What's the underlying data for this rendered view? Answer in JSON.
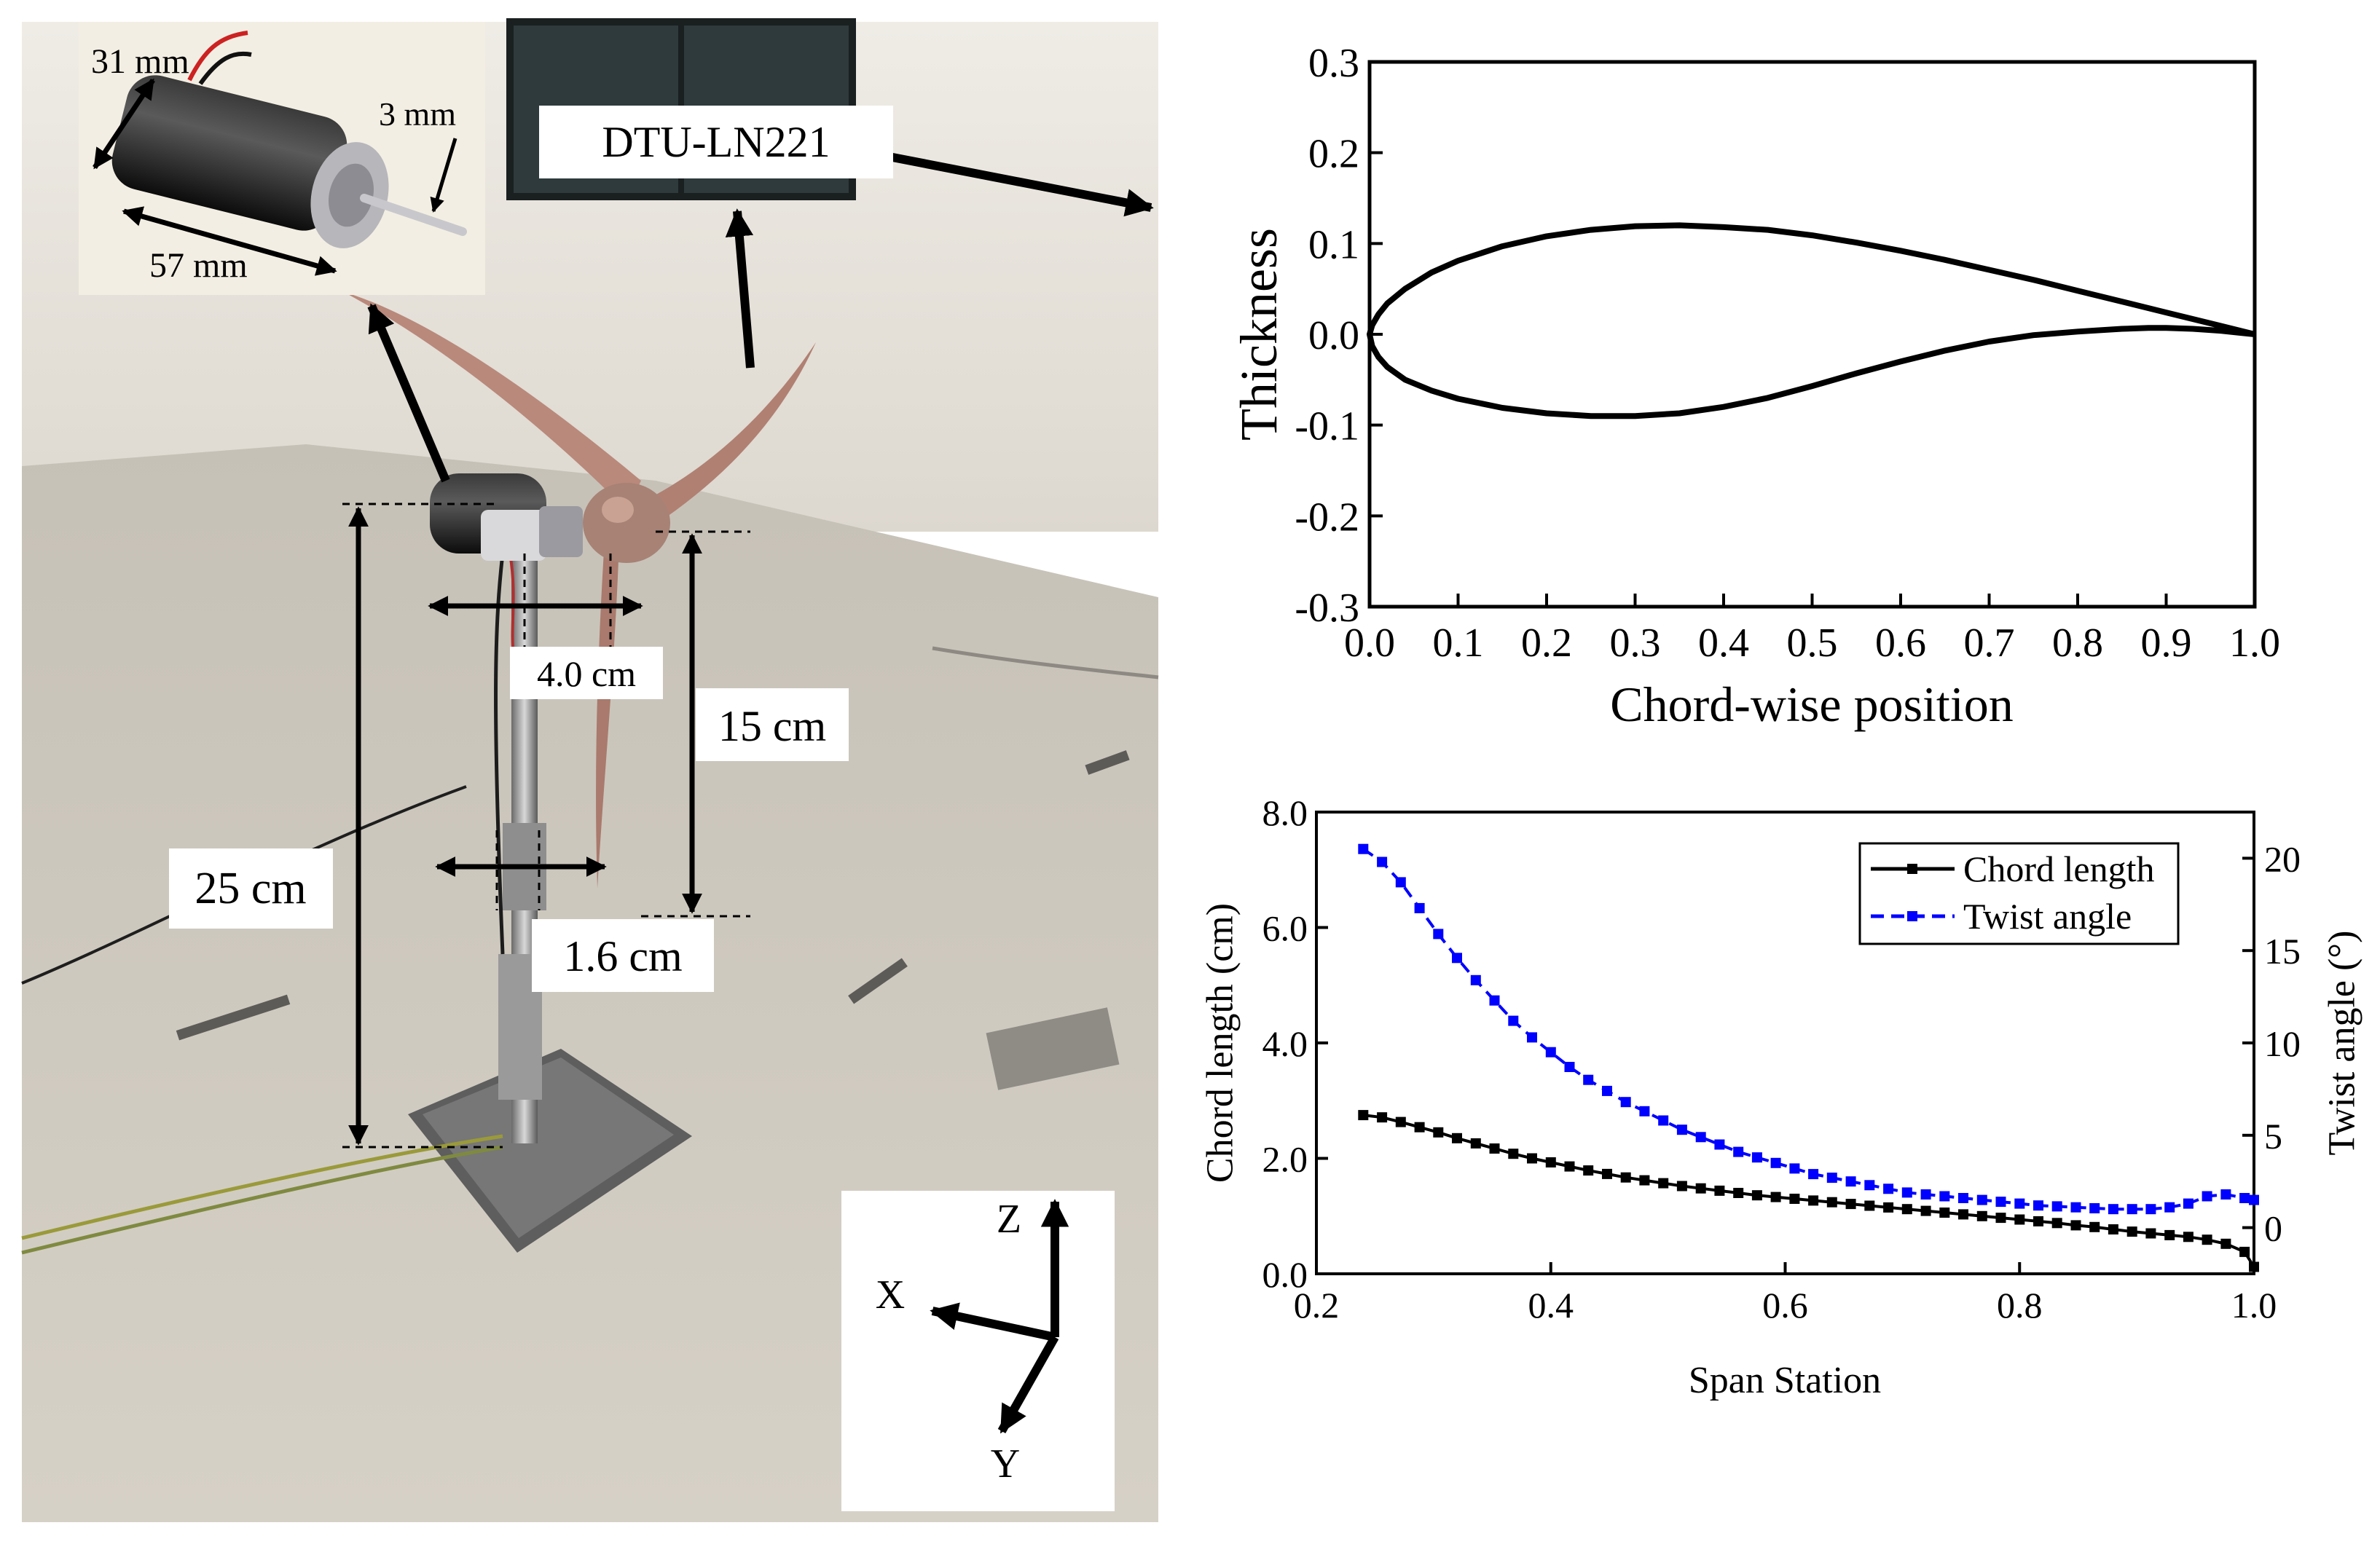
{
  "photo": {
    "motor_inset": {
      "dim_diameter": "31 mm",
      "dim_shaft": "3 mm",
      "dim_length": "57 mm"
    },
    "airfoil_label": "DTU-LN221",
    "dim_hub_width": "4.0 cm",
    "dim_blade_offset": "15 cm",
    "dim_tower_height": "25 cm",
    "dim_tower_diameter": "1.6 cm",
    "axes": {
      "z": "Z",
      "x": "X",
      "y": "Y"
    },
    "colors": {
      "blade": "#b9897b",
      "floor": "#c9c3b7",
      "wall": "#e9e6df"
    }
  },
  "chart_data": [
    {
      "type": "line",
      "title": "",
      "xlabel": "Chord-wise position",
      "ylabel": "Thickness",
      "xlim": [
        0.0,
        1.0
      ],
      "ylim": [
        -0.3,
        0.3
      ],
      "xticks": [
        "0.0",
        "0.1",
        "0.2",
        "0.3",
        "0.4",
        "0.5",
        "0.6",
        "0.7",
        "0.8",
        "0.9",
        "1.0"
      ],
      "yticks": [
        "0.3",
        "0.2",
        "0.1",
        "0.0",
        "-0.1",
        "-0.2",
        "-0.3"
      ],
      "series": [
        {
          "color": "#000000",
          "points": [
            [
              1.0,
              0.0
            ],
            [
              0.95,
              0.012
            ],
            [
              0.9,
              0.024
            ],
            [
              0.85,
              0.036
            ],
            [
              0.8,
              0.048
            ],
            [
              0.75,
              0.06
            ],
            [
              0.7,
              0.071
            ],
            [
              0.65,
              0.082
            ],
            [
              0.6,
              0.092
            ],
            [
              0.55,
              0.101
            ],
            [
              0.5,
              0.109
            ],
            [
              0.45,
              0.115
            ],
            [
              0.4,
              0.118
            ],
            [
              0.35,
              0.12
            ],
            [
              0.3,
              0.119
            ],
            [
              0.25,
              0.115
            ],
            [
              0.2,
              0.108
            ],
            [
              0.15,
              0.097
            ],
            [
              0.1,
              0.081
            ],
            [
              0.07,
              0.068
            ],
            [
              0.04,
              0.05
            ],
            [
              0.02,
              0.034
            ],
            [
              0.01,
              0.022
            ],
            [
              0.003,
              0.01
            ],
            [
              0.0,
              0.0
            ],
            [
              0.003,
              -0.013
            ],
            [
              0.01,
              -0.025
            ],
            [
              0.02,
              -0.036
            ],
            [
              0.04,
              -0.05
            ],
            [
              0.07,
              -0.062
            ],
            [
              0.1,
              -0.071
            ],
            [
              0.15,
              -0.081
            ],
            [
              0.2,
              -0.087
            ],
            [
              0.25,
              -0.09
            ],
            [
              0.3,
              -0.09
            ],
            [
              0.35,
              -0.087
            ],
            [
              0.4,
              -0.08
            ],
            [
              0.45,
              -0.07
            ],
            [
              0.5,
              -0.057
            ],
            [
              0.55,
              -0.043
            ],
            [
              0.6,
              -0.03
            ],
            [
              0.65,
              -0.018
            ],
            [
              0.7,
              -0.008
            ],
            [
              0.75,
              -0.001
            ],
            [
              0.8,
              0.003
            ],
            [
              0.85,
              0.006
            ],
            [
              0.88,
              0.007
            ],
            [
              0.9,
              0.007
            ],
            [
              0.93,
              0.006
            ],
            [
              0.96,
              0.004
            ],
            [
              0.98,
              0.002
            ],
            [
              1.0,
              0.0
            ]
          ]
        }
      ]
    },
    {
      "type": "line",
      "title": "",
      "xlabel": "Span Station",
      "ylabel": "Chord length (cm)",
      "ylabel_right": "Twist angle (°)",
      "xlim": [
        0.2,
        1.0
      ],
      "ylim": [
        0.0,
        8.0
      ],
      "ylim_right": [
        -2.5,
        22.5
      ],
      "xticks": [
        "0.2",
        "0.4",
        "0.6",
        "0.8",
        "1.0"
      ],
      "yticks": [
        "8.0",
        "6.0",
        "4.0",
        "2.0",
        "0.0"
      ],
      "yticks_right": [
        "20",
        "15",
        "10",
        "5",
        "0"
      ],
      "legend": "top-right",
      "series": [
        {
          "name": "Chord length",
          "color": "#000000",
          "axis": "left",
          "style": "solid",
          "marker": "square",
          "x": [
            0.24,
            0.256,
            0.272,
            0.288,
            0.304,
            0.32,
            0.336,
            0.352,
            0.368,
            0.384,
            0.4,
            0.416,
            0.432,
            0.448,
            0.464,
            0.48,
            0.496,
            0.512,
            0.528,
            0.544,
            0.56,
            0.576,
            0.592,
            0.608,
            0.624,
            0.64,
            0.656,
            0.672,
            0.688,
            0.704,
            0.72,
            0.736,
            0.752,
            0.768,
            0.784,
            0.8,
            0.816,
            0.832,
            0.848,
            0.864,
            0.88,
            0.896,
            0.912,
            0.928,
            0.944,
            0.96,
            0.976,
            0.992,
            1.0
          ],
          "y": [
            2.75,
            2.71,
            2.63,
            2.54,
            2.45,
            2.35,
            2.26,
            2.17,
            2.08,
            2.0,
            1.93,
            1.86,
            1.79,
            1.73,
            1.67,
            1.62,
            1.57,
            1.52,
            1.48,
            1.44,
            1.4,
            1.36,
            1.33,
            1.3,
            1.27,
            1.24,
            1.21,
            1.18,
            1.15,
            1.12,
            1.09,
            1.06,
            1.03,
            1.0,
            0.97,
            0.94,
            0.91,
            0.88,
            0.84,
            0.81,
            0.77,
            0.73,
            0.7,
            0.67,
            0.64,
            0.59,
            0.52,
            0.38,
            0.12
          ]
        },
        {
          "name": "Twist angle",
          "color": "#0000ff",
          "axis": "right",
          "style": "dashed",
          "marker": "square",
          "x": [
            0.24,
            0.256,
            0.272,
            0.288,
            0.304,
            0.32,
            0.336,
            0.352,
            0.368,
            0.384,
            0.4,
            0.416,
            0.432,
            0.448,
            0.464,
            0.48,
            0.496,
            0.512,
            0.528,
            0.544,
            0.56,
            0.576,
            0.592,
            0.608,
            0.624,
            0.64,
            0.656,
            0.672,
            0.688,
            0.704,
            0.72,
            0.736,
            0.752,
            0.768,
            0.784,
            0.8,
            0.816,
            0.832,
            0.848,
            0.864,
            0.88,
            0.896,
            0.912,
            0.928,
            0.944,
            0.96,
            0.976,
            0.992,
            1.0
          ],
          "y": [
            20.5,
            19.8,
            18.7,
            17.3,
            15.9,
            14.6,
            13.4,
            12.3,
            11.2,
            10.3,
            9.5,
            8.7,
            8.0,
            7.4,
            6.8,
            6.3,
            5.8,
            5.3,
            4.9,
            4.5,
            4.1,
            3.8,
            3.5,
            3.2,
            2.9,
            2.7,
            2.5,
            2.3,
            2.1,
            1.9,
            1.8,
            1.7,
            1.6,
            1.5,
            1.4,
            1.3,
            1.2,
            1.15,
            1.1,
            1.05,
            1.0,
            1.0,
            1.0,
            1.1,
            1.3,
            1.7,
            1.8,
            1.6,
            1.5
          ]
        }
      ]
    }
  ]
}
